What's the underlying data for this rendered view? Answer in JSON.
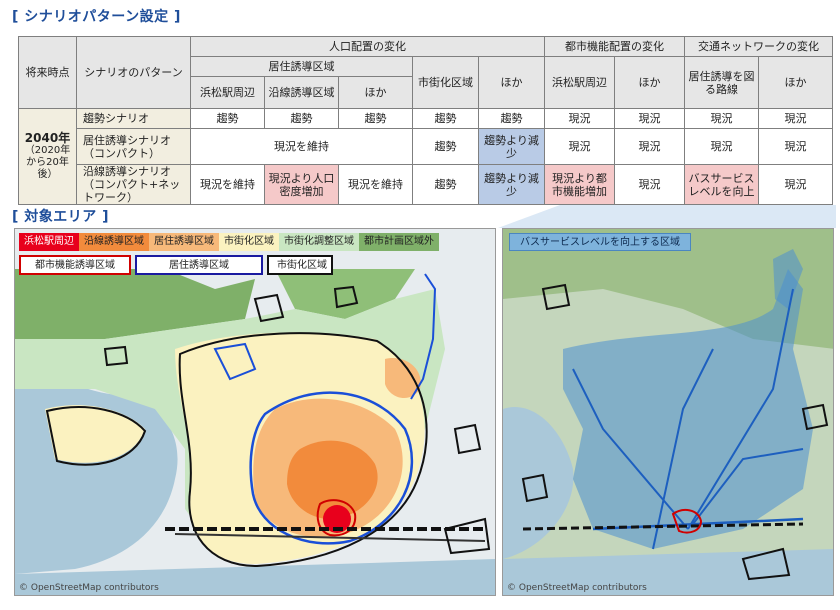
{
  "titles": {
    "scenario": "[ シナリオパターン設定 ]",
    "area": "[ 対象エリア ]"
  },
  "table": {
    "h_future": "将来時点",
    "h_pattern": "シナリオのパターン",
    "h_population": "人口配置の変化",
    "h_urban_function": "都市機能配置の変化",
    "h_transport": "交通ネットワークの変化",
    "h_residence_area": "居住誘導区域",
    "h_hamamatsu": "浜松駅周辺",
    "h_along_line": "沿線誘導区域",
    "h_other1": "ほか",
    "h_urbanized": "市街化区域",
    "h_other2": "ほか",
    "h_hamamatsu2": "浜松駅周辺",
    "h_other3": "ほか",
    "h_route": "居住誘導を図る路線",
    "h_other4": "ほか",
    "year": "2040年",
    "year_note": "（2020年から20年後）",
    "rows": [
      {
        "name": "趨勢シナリオ",
        "c1": "趨勢",
        "c2": "趨勢",
        "c3": "趨勢",
        "c4": "趨勢",
        "c5": "趨勢",
        "c6": "現況",
        "c7": "現況",
        "c8": "現況",
        "c9": "現況"
      },
      {
        "name": "居住誘導シナリオ（コンパクト）",
        "merged": "現況を維持",
        "c4": "趨勢",
        "c5": "趨勢より減少",
        "c6": "現況",
        "c7": "現況",
        "c8": "現況",
        "c9": "現況"
      },
      {
        "name": "沿線誘導シナリオ（コンパクト+ネットワーク）",
        "c1": "現況を維持",
        "c2": "現況より人口密度増加",
        "c3": "現況を維持",
        "c4": "趨勢",
        "c5": "趨勢より減少",
        "c6": "現況より都市機能増加",
        "c7": "現況",
        "c8": "バスサービスレベルを向上",
        "c9": "現況"
      }
    ]
  },
  "legend_left": {
    "fill": [
      {
        "label": "浜松駅周辺",
        "color": "#e8001c"
      },
      {
        "label": "沿線誘導区域",
        "color": "#f28b3c"
      },
      {
        "label": "居住誘導区域",
        "color": "#f7b97a"
      },
      {
        "label": "市街化区域",
        "color": "#fbf2c0"
      },
      {
        "label": "市街化調整区域",
        "color": "#c9e6c2"
      },
      {
        "label": "都市計画区域外",
        "color": "#7fb069"
      }
    ],
    "border": [
      {
        "label": "都市機能誘導区域",
        "color": "#d00000"
      },
      {
        "label": "居住誘導区域",
        "color": "#1a1aa0"
      },
      {
        "label": "市街化区域",
        "color": "#111111"
      }
    ]
  },
  "legend_right": {
    "label": "バスサービスレベルを向上する区域"
  },
  "credit_left": "© OpenStreetMap contributors",
  "credit_right": "© OpenStreetMap contributors",
  "colors": {
    "title": "#1f4e9a",
    "sea": "#aac8d9",
    "pink": "#f5c9c9",
    "blue": "#b9cbe6"
  }
}
